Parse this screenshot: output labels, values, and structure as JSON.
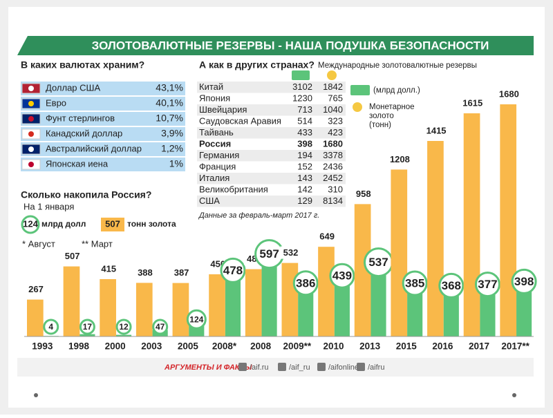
{
  "header": {
    "title": "ЗОЛОТОВАЛЮТНЫЕ РЕЗЕРВЫ - НАША ПОДУШКА БЕЗОПАСНОСТИ"
  },
  "currencies": {
    "heading": "В каких валютах храним?",
    "rows": [
      [
        "Доллар США",
        "43,1%"
      ],
      [
        "Евро",
        "40,1%"
      ],
      [
        "Фунт стерлингов",
        "10,7%"
      ],
      [
        "Канадский доллар",
        "3,9%"
      ],
      [
        "Австралийский доллар",
        "1,2%"
      ],
      [
        "Японская иена",
        "1%"
      ]
    ]
  },
  "countries": {
    "heading": "А как в других странах?",
    "subheading": "Международные золотовалютные резервы",
    "legend_reserves": "(млрд долл.)",
    "legend_gold": "Монетарное золото (тонн)",
    "rows": [
      [
        "Китай",
        "3102",
        "1842"
      ],
      [
        "Япония",
        "1230",
        "765"
      ],
      [
        "Швейцария",
        "713",
        "1040"
      ],
      [
        "Саудовская Аравия",
        "514",
        "323"
      ],
      [
        "Тайвань",
        "433",
        "423"
      ],
      [
        "Россия",
        "398",
        "1680"
      ],
      [
        "Германия",
        "194",
        "3378"
      ],
      [
        "Франция",
        "152",
        "2436"
      ],
      [
        "Италия",
        "143",
        "2452"
      ],
      [
        "Великобритания",
        "142",
        "310"
      ],
      [
        "США",
        "129",
        "8134"
      ]
    ],
    "note": "Данные за февраль-март 2017 г."
  },
  "russia": {
    "heading": "Сколько накопила Россия?",
    "subheading": "На 1 января",
    "reserves_example": "124",
    "gold_example": "507",
    "footnote_1": "* Август",
    "footnote_2": "** Март"
  },
  "chart_data": {
    "type": "bar",
    "categories": [
      "1993",
      "1998",
      "2000",
      "2003",
      "2005",
      "2008*",
      "2008",
      "2009**",
      "2010",
      "2013",
      "2015",
      "2016",
      "2017",
      "2017**"
    ],
    "series": [
      {
        "name": "тонн золота",
        "color": "#f9b84a",
        "values": [
          267,
          507,
          415,
          388,
          387,
          450,
          487,
          532,
          649,
          958,
          1208,
          1415,
          1615,
          1680
        ]
      },
      {
        "name": "млрд долл",
        "color": "#5cc47a",
        "axis": "y2",
        "values": [
          4,
          17,
          12,
          47,
          124,
          478,
          597,
          386,
          439,
          537,
          385,
          368,
          377,
          398
        ]
      }
    ],
    "ylim": [
      0,
      1700
    ],
    "y2lim": [
      0,
      1700
    ]
  },
  "footer": {
    "logo": "АРГУМЕНТЫ И ФАКТЫ",
    "links": [
      "/aif.ru",
      "/aif_ru",
      "/aifonline",
      "/aifru"
    ]
  }
}
